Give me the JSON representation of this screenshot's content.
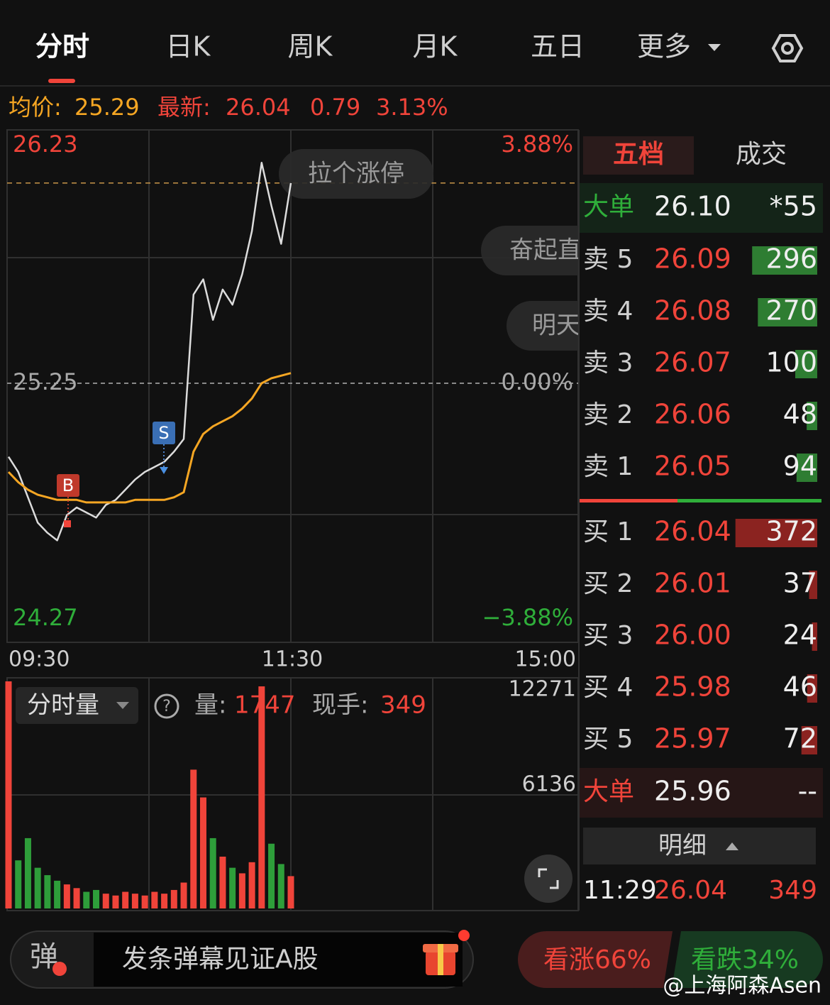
{
  "tabs": [
    "分时",
    "日K",
    "周K",
    "月K",
    "五日",
    "更多"
  ],
  "quote": {
    "avg_label": "均价:",
    "avg": 25.29,
    "latest_label": "最新:",
    "latest": 26.04,
    "change": 0.79,
    "change_pct": "3.13%"
  },
  "time_axis": [
    "09:30",
    "11:30",
    "15:00"
  ],
  "bubbles": [
    "拉个涨停",
    "奋起直",
    "明天"
  ],
  "markers": [
    "B",
    "S"
  ],
  "volume_info": {
    "selector": "分时量",
    "volume_label": "量:",
    "volume": 1747,
    "hand_label": "现手:",
    "hand": 349
  },
  "chart_data": [
    {
      "type": "line",
      "series": [
        {
          "color": "#dcdcdc",
          "values": [
            24.96,
            24.9,
            24.8,
            24.7,
            24.66,
            24.63,
            24.73,
            24.76,
            24.74,
            24.72,
            24.77,
            24.79,
            24.83,
            24.87,
            24.9,
            24.92,
            24.94,
            24.98,
            25.03,
            25.6,
            25.66,
            25.5,
            25.62,
            25.56,
            25.68,
            25.85,
            26.12,
            25.95,
            25.8,
            26.04
          ]
        },
        {
          "color": "#f5a623",
          "values": [
            24.9,
            24.86,
            24.83,
            24.81,
            24.8,
            24.79,
            24.79,
            24.79,
            24.78,
            24.78,
            24.78,
            24.78,
            24.78,
            24.79,
            24.79,
            24.79,
            24.79,
            24.8,
            24.82,
            24.98,
            25.05,
            25.08,
            25.1,
            25.12,
            25.15,
            25.19,
            25.25,
            25.27,
            25.28,
            25.29
          ]
        }
      ],
      "ylim": [
        24.27,
        26.23
      ],
      "yticks": [
        26.23,
        25.25,
        24.27
      ],
      "y2lim": [
        -3.88,
        3.88
      ],
      "y2ticks": [
        {
          "value": 3.88,
          "label": "3.88%"
        },
        {
          "value": 0,
          "label": "0.00%"
        },
        {
          "value": -3.88,
          "label": "−3.88%"
        }
      ]
    },
    {
      "type": "bar",
      "up_color": "#f0443a",
      "down_color": "#2e9e3a",
      "values": [
        12271,
        2600,
        3800,
        2200,
        1800,
        1500,
        1300,
        1100,
        900,
        1000,
        800,
        700,
        900,
        800,
        700,
        900,
        800,
        1000,
        1400,
        7500,
        6000,
        3800,
        2800,
        2200,
        1900,
        2500,
        12000,
        3500,
        2400,
        1747
      ],
      "ylim": [
        0,
        12271
      ],
      "yticks": [
        12271,
        6136
      ]
    }
  ],
  "order_book": {
    "tabs": [
      "五档",
      "成交"
    ],
    "big_top": {
      "label": "大单",
      "price": "26.10",
      "qty": "*55"
    },
    "asks": [
      {
        "label": "卖 5",
        "price": "26.09",
        "qty": 296
      },
      {
        "label": "卖 4",
        "price": "26.08",
        "qty": 270
      },
      {
        "label": "卖 3",
        "price": "26.07",
        "qty": 100
      },
      {
        "label": "卖 2",
        "price": "26.06",
        "qty": 48
      },
      {
        "label": "卖 1",
        "price": "26.05",
        "qty": 94
      }
    ],
    "bids": [
      {
        "label": "买 1",
        "price": "26.04",
        "qty": 372
      },
      {
        "label": "买 2",
        "price": "26.01",
        "qty": 37
      },
      {
        "label": "买 3",
        "price": "26.00",
        "qty": 24
      },
      {
        "label": "买 4",
        "price": "25.98",
        "qty": 46
      },
      {
        "label": "买 5",
        "price": "25.97",
        "qty": 72
      }
    ],
    "big_bottom": {
      "label": "大单",
      "price": "25.96",
      "qty": "--"
    }
  },
  "detail": {
    "title": "明细",
    "rows": [
      [
        "11:29",
        "26.04",
        "349"
      ]
    ]
  },
  "danmaku": {
    "icon": "弹",
    "placeholder": "发条弹幕见证A股"
  },
  "sentiment": {
    "up": "看涨66%",
    "down": "看跌34%"
  },
  "watermark": "@上海阿森Asen"
}
